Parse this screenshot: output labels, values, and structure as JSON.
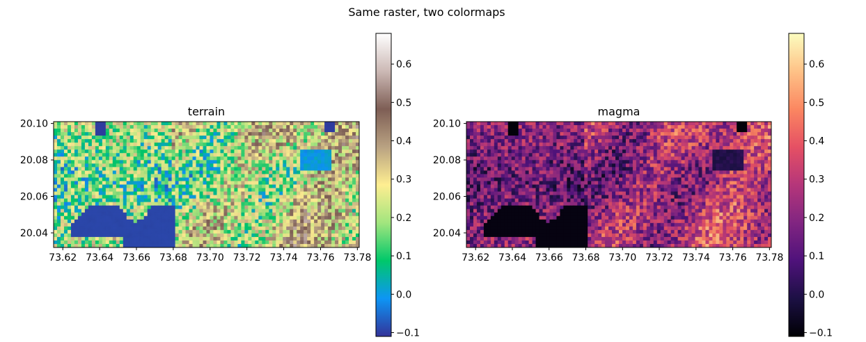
{
  "figure": {
    "title": "Same raster, two colormaps"
  },
  "chart_data": [
    {
      "type": "heatmap",
      "title": "terrain",
      "colormap": "terrain",
      "xlabel": "",
      "ylabel": "",
      "xlim": [
        73.615,
        73.781
      ],
      "ylim": [
        20.032,
        20.101
      ],
      "x_ticks": [
        73.62,
        73.64,
        73.66,
        73.68,
        73.7,
        73.72,
        73.74,
        73.76,
        73.78
      ],
      "x_tick_labels": [
        "73.62",
        "73.64",
        "73.66",
        "73.68",
        "73.70",
        "73.72",
        "73.74",
        "73.76",
        "73.78"
      ],
      "y_ticks": [
        20.04,
        20.06,
        20.08,
        20.1
      ],
      "y_tick_labels": [
        "20.04",
        "20.06",
        "20.08",
        "20.10"
      ],
      "colorbar": {
        "vmin": -0.11,
        "vmax": 0.68,
        "ticks": [
          -0.1,
          0.0,
          0.1,
          0.2,
          0.3,
          0.4,
          0.5,
          0.6
        ],
        "tick_labels": [
          "−0.1",
          "0.0",
          "0.1",
          "0.2",
          "0.3",
          "0.4",
          "0.5",
          "0.6"
        ],
        "colors": [
          "#333399",
          "#0d95f5",
          "#00c86a",
          "#a2e57e",
          "#feee91",
          "#b9a282",
          "#7e5e55",
          "#ccb9b5",
          "#ffffff"
        ]
      }
    },
    {
      "type": "heatmap",
      "title": "magma",
      "colormap": "magma",
      "xlabel": "",
      "ylabel": "",
      "xlim": [
        73.615,
        73.781
      ],
      "ylim": [
        20.032,
        20.101
      ],
      "x_ticks": [
        73.62,
        73.64,
        73.66,
        73.68,
        73.7,
        73.72,
        73.74,
        73.76,
        73.78
      ],
      "x_tick_labels": [
        "73.62",
        "73.64",
        "73.66",
        "73.68",
        "73.70",
        "73.72",
        "73.74",
        "73.76",
        "73.78"
      ],
      "y_ticks": [
        20.04,
        20.06,
        20.08,
        20.1
      ],
      "y_tick_labels": [
        "20.04",
        "20.06",
        "20.08",
        "20.10"
      ],
      "colorbar": {
        "vmin": -0.11,
        "vmax": 0.68,
        "ticks": [
          -0.1,
          0.0,
          0.1,
          0.2,
          0.3,
          0.4,
          0.5,
          0.6
        ],
        "tick_labels": [
          "−0.1",
          "0.0",
          "0.1",
          "0.2",
          "0.3",
          "0.4",
          "0.5",
          "0.6"
        ],
        "colors": [
          "#000004",
          "#1c1044",
          "#4f127b",
          "#812581",
          "#b5367a",
          "#e55064",
          "#fb8761",
          "#fec287",
          "#fcfdbf"
        ]
      }
    }
  ]
}
